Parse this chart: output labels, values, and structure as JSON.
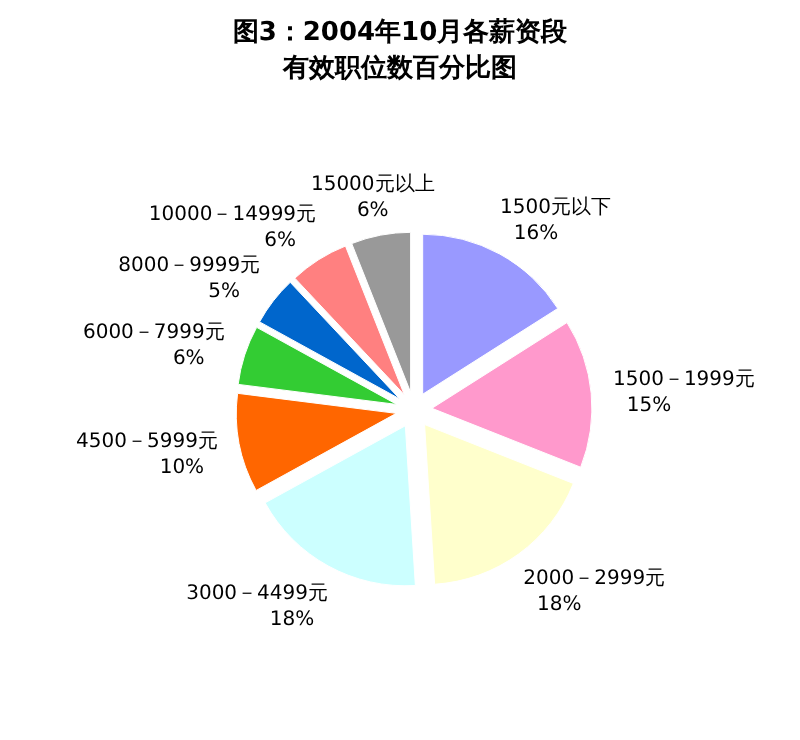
{
  "chart_data": {
    "type": "pie",
    "title": "图3：2004年10月各薪资段",
    "subtitle": "有效职位数百分比图",
    "categories": [
      "1500元以下",
      "1500－1999元",
      "2000－2999元",
      "3000－4499元",
      "4500－5999元",
      "6000－7999元",
      "8000－9999元",
      "10000－14999元",
      "15000元以上"
    ],
    "values": [
      16,
      15,
      18,
      18,
      10,
      6,
      5,
      6,
      6
    ],
    "value_labels": [
      "16%",
      "15%",
      "18%",
      "18%",
      "10%",
      "6%",
      "5%",
      "6%",
      "6%"
    ],
    "colors": [
      "#9999ff",
      "#ff99cc",
      "#ffffcc",
      "#ccffff",
      "#ff6600",
      "#33cc33",
      "#0066cc",
      "#ff8080",
      "#999999"
    ]
  }
}
